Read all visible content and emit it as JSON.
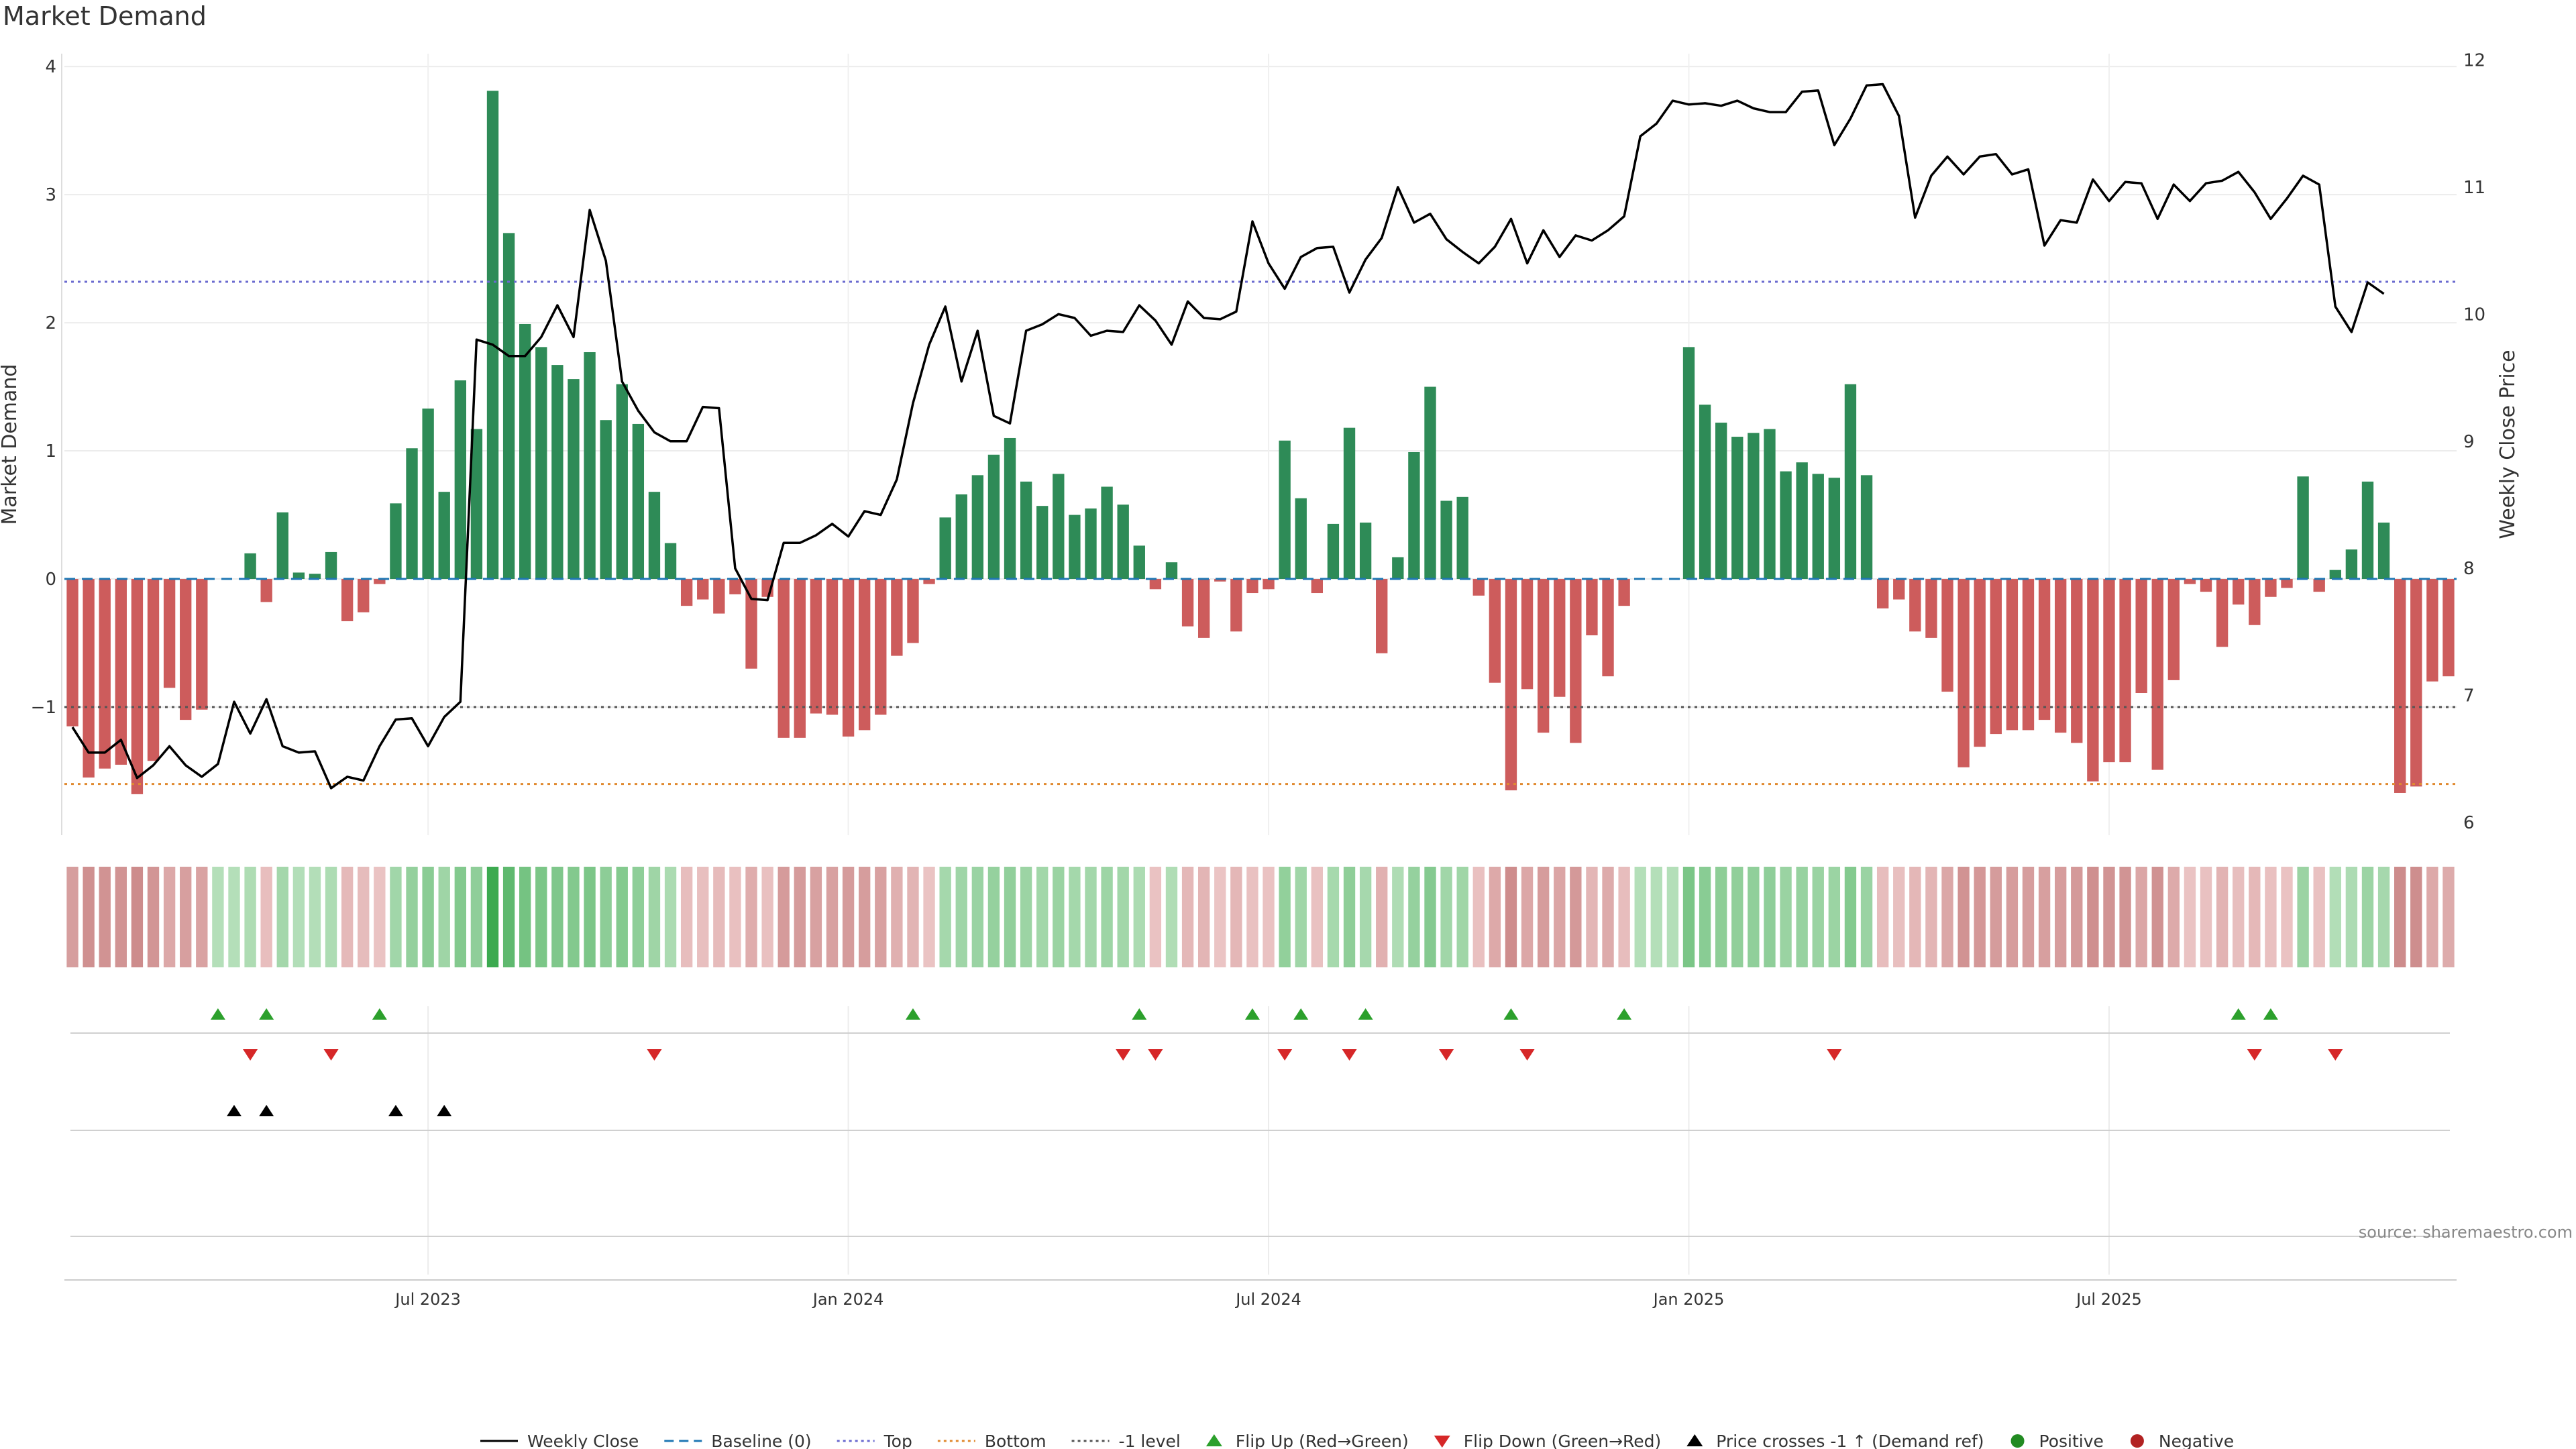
{
  "title": "Market Demand",
  "source": "source: sharemaestro.com",
  "colors": {
    "positive": "#2e8b57",
    "negative": "#cd5c5c",
    "price": "#000000",
    "top": "#6a6acf",
    "bottom": "#e08a30",
    "neg1": "#555555",
    "baseline": "#1f77b4",
    "flip_up": "#2ca02c",
    "flip_down": "#d62728",
    "cross": "#000000",
    "pos_dot": "#228b22",
    "neg_dot": "#b22222"
  },
  "legend": [
    {
      "label": "Weekly Close",
      "kind": "line-solid",
      "color_key": "price"
    },
    {
      "label": "Baseline (0)",
      "kind": "line-dashed",
      "color_key": "baseline"
    },
    {
      "label": "Top",
      "kind": "line-dotted",
      "color_key": "top"
    },
    {
      "label": "Bottom",
      "kind": "line-dotted",
      "color_key": "bottom"
    },
    {
      "label": "-1 level",
      "kind": "line-dotted",
      "color_key": "neg1"
    },
    {
      "label": "Flip Up (Red→Green)",
      "kind": "tri-up",
      "color_key": "flip_up"
    },
    {
      "label": "Flip Down (Green→Red)",
      "kind": "tri-down",
      "color_key": "flip_down"
    },
    {
      "label": "Price crosses -1 ↑ (Demand ref)",
      "kind": "tri-up",
      "color_key": "cross"
    },
    {
      "label": "Positive",
      "kind": "dot",
      "color_key": "pos_dot"
    },
    {
      "label": "Negative",
      "kind": "dot",
      "color_key": "neg_dot"
    }
  ],
  "chart_data": {
    "type": "bar",
    "title": "Market Demand",
    "ylabel": "Market Demand",
    "y2label": "Weekly Close Price",
    "ylim": [
      -2.0,
      4.1
    ],
    "y2lim": [
      5.9,
      12.05
    ],
    "yticks": [
      "−1",
      "0",
      "1",
      "2",
      "3",
      "4"
    ],
    "ytick_values": [
      -1,
      0,
      1,
      2,
      3,
      4
    ],
    "y2ticks": [
      "6",
      "7",
      "8",
      "9",
      "10",
      "11",
      "12"
    ],
    "y2tick_values": [
      6,
      7,
      8,
      9,
      10,
      11,
      12
    ],
    "xticks": [
      "Jul 2023",
      "Jan 2024",
      "Jul 2024",
      "Jan 2025",
      "Jul 2025"
    ],
    "xtick_weeks": [
      22,
      48,
      74,
      100,
      126
    ],
    "reference_lines": {
      "top": 2.32,
      "bottom": -1.6,
      "neg1": -1.0,
      "baseline": 0
    },
    "demand": [
      -1.15,
      -1.55,
      -1.48,
      -1.45,
      -1.68,
      -1.42,
      -0.85,
      -1.1,
      -1.02,
      0.0,
      0.0,
      0.2,
      -0.18,
      0.52,
      0.05,
      0.04,
      0.21,
      -0.33,
      -0.26,
      -0.04,
      0.59,
      1.02,
      1.33,
      0.68,
      1.55,
      1.17,
      3.81,
      2.7,
      1.99,
      1.81,
      1.67,
      1.56,
      1.77,
      1.24,
      1.52,
      1.21,
      0.68,
      0.28,
      -0.21,
      -0.16,
      -0.27,
      -0.12,
      -0.7,
      -0.14,
      -1.24,
      -1.24,
      -1.05,
      -1.06,
      -1.23,
      -1.18,
      -1.06,
      -0.6,
      -0.5,
      -0.04,
      0.48,
      0.66,
      0.81,
      0.97,
      1.1,
      0.76,
      0.57,
      0.82,
      0.5,
      0.55,
      0.72,
      0.58,
      0.26,
      -0.08,
      0.13,
      -0.37,
      -0.46,
      -0.02,
      -0.41,
      -0.11,
      -0.08,
      1.08,
      0.63,
      -0.11,
      0.43,
      1.18,
      0.44,
      -0.58,
      0.17,
      0.99,
      1.5,
      0.61,
      0.64,
      -0.13,
      -0.81,
      -1.65,
      -0.86,
      -1.2,
      -0.92,
      -1.28,
      -0.44,
      -0.76,
      -0.21,
      0.0,
      0.0,
      0.0,
      1.81,
      1.36,
      1.22,
      1.11,
      1.14,
      1.17,
      0.84,
      0.91,
      0.82,
      0.79,
      1.52,
      0.81,
      -0.23,
      -0.16,
      -0.41,
      -0.46,
      -0.88,
      -1.47,
      -1.31,
      -1.21,
      -1.18,
      -1.18,
      -1.1,
      -1.2,
      -1.28,
      -1.58,
      -1.43,
      -1.43,
      -0.89,
      -1.49,
      -0.79,
      -0.04,
      -0.1,
      -0.53,
      -0.2,
      -0.36,
      -0.14,
      -0.07,
      0.8,
      -0.1,
      0.07,
      0.23,
      0.76,
      0.44,
      -1.67,
      -1.62,
      -0.8,
      -0.76
    ],
    "price": [
      6.75,
      6.55,
      6.55,
      6.65,
      6.35,
      6.45,
      6.6,
      6.45,
      6.36,
      6.46,
      6.95,
      6.7,
      6.97,
      6.6,
      6.55,
      6.56,
      6.27,
      6.36,
      6.33,
      6.6,
      6.81,
      6.82,
      6.6,
      6.83,
      6.95,
      9.8,
      9.76,
      9.67,
      9.67,
      9.82,
      10.07,
      9.82,
      10.82,
      10.42,
      9.47,
      9.24,
      9.07,
      9.0,
      9.0,
      9.27,
      9.26,
      8.0,
      7.76,
      7.75,
      8.2,
      8.2,
      8.26,
      8.35,
      8.25,
      8.45,
      8.42,
      8.7,
      9.3,
      9.76,
      10.06,
      9.47,
      9.87,
      9.2,
      9.14,
      9.87,
      9.92,
      10.0,
      9.97,
      9.83,
      9.87,
      9.86,
      10.07,
      9.95,
      9.76,
      10.1,
      9.97,
      9.96,
      10.02,
      10.73,
      10.4,
      10.2,
      10.45,
      10.52,
      10.53,
      10.17,
      10.43,
      10.6,
      11.0,
      10.72,
      10.79,
      10.59,
      10.49,
      10.4,
      10.53,
      10.75,
      10.4,
      10.66,
      10.45,
      10.62,
      10.58,
      10.66,
      10.77,
      11.4,
      11.5,
      11.68,
      11.65,
      11.66,
      11.64,
      11.68,
      11.62,
      11.59,
      11.59,
      11.75,
      11.76,
      11.33,
      11.54,
      11.8,
      11.81,
      11.56,
      10.76,
      11.09,
      11.24,
      11.1,
      11.24,
      11.26,
      11.1,
      11.14,
      10.54,
      10.74,
      10.72,
      11.06,
      10.89,
      11.04,
      11.03,
      10.75,
      11.02,
      10.89,
      11.03,
      11.05,
      11.12,
      10.96,
      10.75,
      10.91,
      11.09,
      11.02,
      10.06,
      9.86,
      10.25,
      10.16
    ],
    "heat_strip": {
      "type": "heatmap",
      "label": "demand intensity per week"
    },
    "flip_up_weeks": [
      9,
      12,
      19,
      52,
      66,
      73,
      76,
      80,
      89,
      96,
      134,
      136
    ],
    "flip_down_weeks": [
      11,
      16,
      36,
      65,
      67,
      75,
      79,
      85,
      90,
      109,
      135,
      140
    ],
    "price_cross_weeks": [
      10,
      12,
      20,
      23
    ]
  }
}
